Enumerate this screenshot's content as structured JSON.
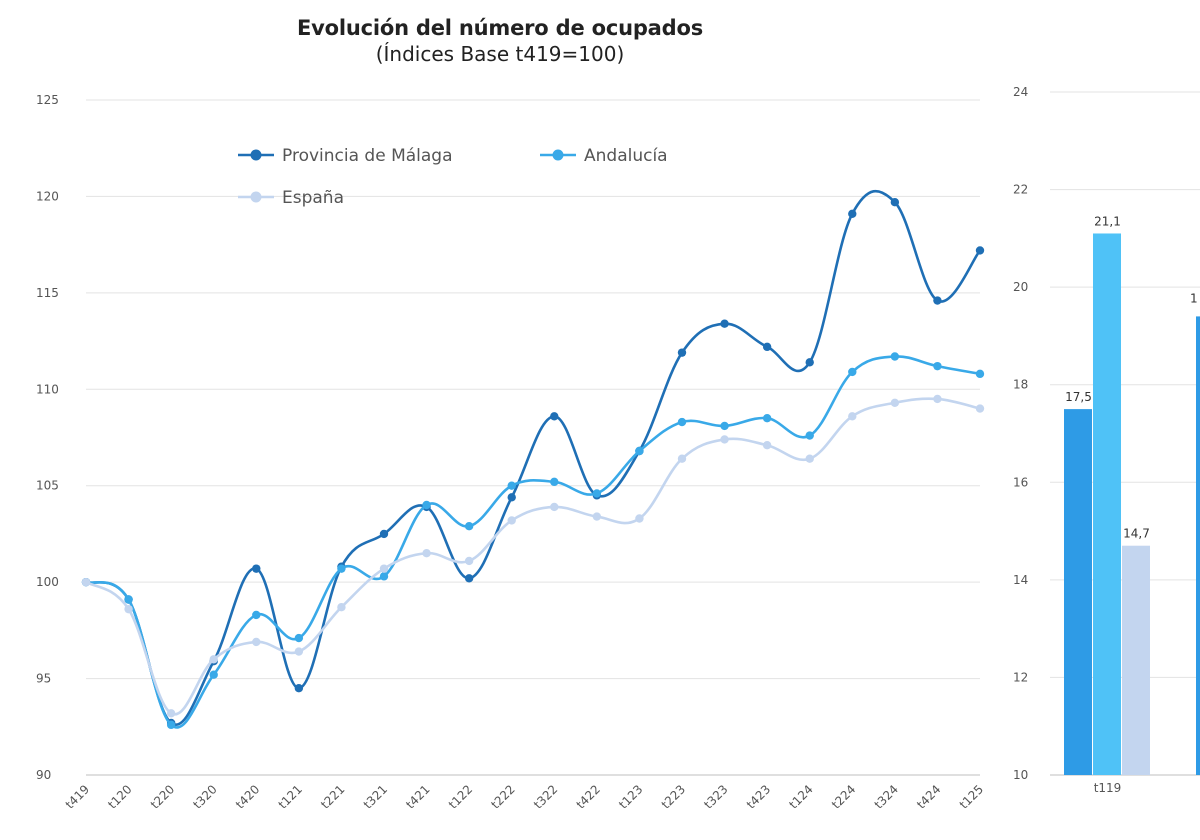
{
  "chart_data": [
    {
      "type": "line",
      "title": "Evolución del número de ocupados",
      "subtitle": "(Índices Base t419=100)",
      "xlabel": "",
      "ylabel": "",
      "ylim": [
        90,
        125
      ],
      "yticks": [
        "90",
        "95",
        "100",
        "105",
        "110",
        "115",
        "120",
        "125"
      ],
      "grid": true,
      "legend_position": "top-left",
      "categories": [
        "t419",
        "t120",
        "t220",
        "t320",
        "t420",
        "t121",
        "t221",
        "t321",
        "t421",
        "t122",
        "t222",
        "t322",
        "t422",
        "t123",
        "t223",
        "t323",
        "t423",
        "t124",
        "t224",
        "t324",
        "t424",
        "t125"
      ],
      "series": [
        {
          "name": "Provincia de Málaga",
          "color": "#1f6fb5",
          "values": [
            100.0,
            99.1,
            92.7,
            95.9,
            100.7,
            94.5,
            100.8,
            102.5,
            103.9,
            100.2,
            104.4,
            108.6,
            104.5,
            106.8,
            111.9,
            113.4,
            112.2,
            111.4,
            119.1,
            119.7,
            114.6,
            117.2
          ]
        },
        {
          "name": "Andalucía",
          "color": "#39a9e8",
          "values": [
            100.0,
            99.1,
            92.6,
            95.2,
            98.3,
            97.1,
            100.7,
            100.3,
            104.0,
            102.9,
            105.0,
            105.2,
            104.6,
            106.8,
            108.3,
            108.1,
            108.5,
            107.6,
            110.9,
            111.7,
            111.2,
            110.8
          ]
        },
        {
          "name": "España",
          "color": "#c3d5ef",
          "values": [
            100.0,
            98.6,
            93.2,
            96.0,
            96.9,
            96.4,
            98.7,
            100.7,
            101.5,
            101.1,
            103.2,
            103.9,
            103.4,
            103.3,
            106.4,
            107.4,
            107.1,
            106.4,
            108.6,
            109.3,
            109.5,
            109.0
          ]
        }
      ]
    },
    {
      "type": "bar",
      "title": "",
      "ylim": [
        10,
        24
      ],
      "yticks": [
        "10",
        "12",
        "14",
        "16",
        "18",
        "20",
        "22",
        "24"
      ],
      "categories": [
        "t119"
      ],
      "series": [
        {
          "name": "Provincia de Málaga",
          "color": "#2e9be6",
          "values": [
            17.5
          ],
          "labels": [
            "17,5"
          ]
        },
        {
          "name": "Andalucía",
          "color": "#4fc2f7",
          "values": [
            21.1
          ],
          "labels": [
            "21,1"
          ]
        },
        {
          "name": "España",
          "color": "#c3d5ef",
          "values": [
            14.7
          ],
          "labels": [
            "14,7"
          ]
        }
      ],
      "partial_visible": {
        "label": "1",
        "value": 19.4,
        "color": "#2e9be6"
      }
    }
  ]
}
